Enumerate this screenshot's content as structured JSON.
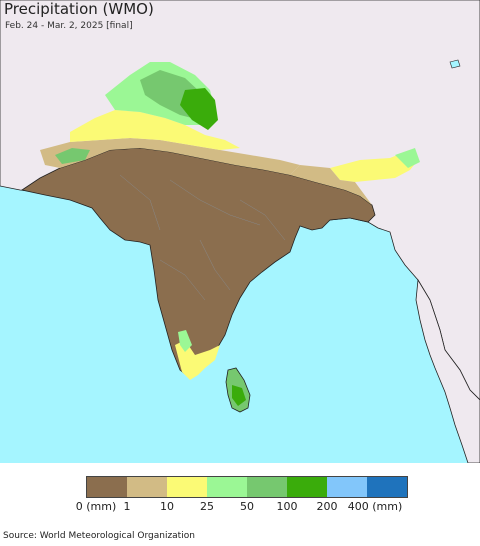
{
  "title": "Precipitation (WMO)",
  "subtitle": "Feb. 24 - Mar. 2, 2025 [final]",
  "source": "Source: World Meteorological Organization",
  "colors": {
    "ocean": "#a5f5ff",
    "land_outside": "#efe9ef",
    "border": "#222222",
    "state_border": "#888888"
  },
  "legend": {
    "unit": "(mm)",
    "labels": [
      "0 (mm)",
      "1",
      "10",
      "25",
      "50",
      "100",
      "200",
      "400 (mm)"
    ],
    "colors": [
      "#8b6e4e",
      "#d2bb85",
      "#fbfa75",
      "#9bf795",
      "#76c86f",
      "#3aac0b",
      "#82c6fa",
      "#1f73bc"
    ]
  }
}
